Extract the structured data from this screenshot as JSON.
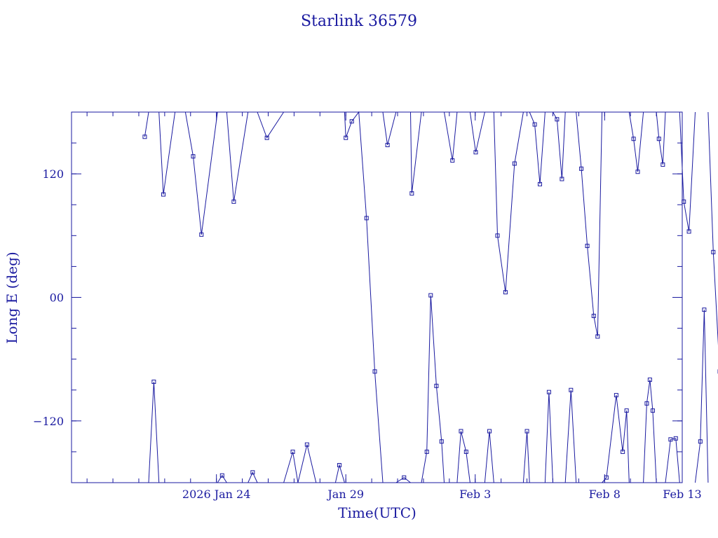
{
  "chart_data": {
    "type": "line",
    "title": "Starlink 36579",
    "xlabel": "Time(UTC)",
    "ylabel": "Long E (deg)",
    "ylim": [
      -180,
      180
    ],
    "xlim": [
      0,
      23.6
    ],
    "x_ticks": [
      {
        "x": 5.6,
        "label": "2026 Jan 24"
      },
      {
        "x": 10.6,
        "label": "Jan 29"
      },
      {
        "x": 15.6,
        "label": "Feb  3"
      },
      {
        "x": 20.6,
        "label": "Feb  8"
      },
      {
        "x": 25.6,
        "label": "Feb 13"
      }
    ],
    "y_ticks": [
      {
        "y": 120,
        "label": "120"
      },
      {
        "y": 0,
        "label": "00"
      },
      {
        "y": -120,
        "label": "−120"
      }
    ],
    "y_minor_step": 30,
    "x_minor_step": 1,
    "color": "#1a1aa0",
    "series": [
      {
        "points": [
          [
            2.83,
            156
          ],
          [
            2.98,
            180
          ],
          [
            2.98,
            -180
          ],
          [
            3.18,
            -82
          ],
          [
            3.38,
            -180
          ],
          [
            3.38,
            180
          ],
          [
            3.55,
            100
          ],
          [
            4.0,
            180
          ],
          [
            4.4,
            180
          ],
          [
            4.7,
            137
          ],
          [
            5.02,
            61
          ],
          [
            5.64,
            180
          ],
          [
            5.64,
            -180
          ],
          [
            5.82,
            -173
          ],
          [
            6.0,
            -180
          ],
          [
            6.0,
            180
          ],
          [
            6.27,
            93
          ],
          [
            6.82,
            180
          ],
          [
            6.82,
            -180
          ],
          [
            7.0,
            -170
          ],
          [
            7.18,
            -180
          ],
          [
            7.18,
            180
          ],
          [
            7.55,
            155
          ],
          [
            8.2,
            180
          ],
          [
            8.2,
            -180
          ],
          [
            8.55,
            -150
          ],
          [
            8.75,
            -180
          ],
          [
            8.75,
            -180
          ],
          [
            9.1,
            -143
          ],
          [
            9.45,
            -180
          ],
          [
            9.45,
            180
          ],
          [
            9.75,
            180
          ],
          [
            10.2,
            180
          ],
          [
            10.2,
            -180
          ],
          [
            10.35,
            -163
          ],
          [
            10.55,
            -180
          ],
          [
            10.55,
            180
          ],
          [
            10.6,
            155
          ],
          [
            10.83,
            171
          ],
          [
            11.1,
            180
          ],
          [
            11.4,
            77
          ],
          [
            11.72,
            -72
          ],
          [
            12.03,
            -180
          ],
          [
            12.03,
            180
          ],
          [
            12.21,
            148
          ],
          [
            12.54,
            180
          ],
          [
            12.54,
            -180
          ],
          [
            12.85,
            -175
          ],
          [
            13.1,
            -180
          ],
          [
            13.1,
            180
          ],
          [
            13.15,
            101
          ],
          [
            13.52,
            180
          ],
          [
            13.52,
            -180
          ],
          [
            13.73,
            -150
          ],
          [
            13.88,
            2
          ],
          [
            14.1,
            -86
          ],
          [
            14.3,
            -140
          ],
          [
            14.4,
            -180
          ],
          [
            14.4,
            180
          ],
          [
            14.72,
            133
          ],
          [
            14.9,
            180
          ],
          [
            14.9,
            -180
          ],
          [
            15.05,
            -130
          ],
          [
            15.25,
            -150
          ],
          [
            15.4,
            -180
          ],
          [
            15.4,
            180
          ],
          [
            15.62,
            141
          ],
          [
            15.97,
            180
          ],
          [
            15.97,
            -180
          ],
          [
            16.15,
            -130
          ],
          [
            16.32,
            -180
          ],
          [
            16.32,
            180
          ],
          [
            16.46,
            60
          ],
          [
            16.77,
            5
          ],
          [
            17.12,
            130
          ],
          [
            17.46,
            180
          ],
          [
            17.46,
            -180
          ],
          [
            17.6,
            -130
          ],
          [
            17.7,
            -180
          ],
          [
            17.7,
            180
          ],
          [
            17.9,
            168
          ],
          [
            18.1,
            110
          ],
          [
            18.3,
            180
          ],
          [
            18.3,
            -180
          ],
          [
            18.45,
            -92
          ],
          [
            18.6,
            -180
          ],
          [
            18.6,
            180
          ],
          [
            18.76,
            173
          ],
          [
            18.95,
            115
          ],
          [
            19.08,
            180
          ],
          [
            19.08,
            -180
          ],
          [
            19.3,
            -90
          ],
          [
            19.5,
            -180
          ],
          [
            19.5,
            180
          ],
          [
            19.7,
            125
          ],
          [
            19.93,
            50
          ],
          [
            20.18,
            -18
          ],
          [
            20.33,
            -38
          ],
          [
            20.5,
            180
          ],
          [
            20.5,
            -180
          ],
          [
            20.67,
            -175
          ],
          [
            21.05,
            -95
          ],
          [
            21.3,
            -150
          ],
          [
            21.45,
            -110
          ],
          [
            21.55,
            -180
          ],
          [
            21.55,
            180
          ],
          [
            21.72,
            154
          ],
          [
            21.88,
            122
          ],
          [
            22.1,
            180
          ],
          [
            22.1,
            -180
          ],
          [
            22.23,
            -103
          ],
          [
            22.35,
            -80
          ],
          [
            22.46,
            -110
          ],
          [
            22.6,
            -180
          ],
          [
            22.6,
            180
          ],
          [
            22.7,
            154
          ],
          [
            22.85,
            129
          ],
          [
            22.95,
            180
          ],
          [
            22.95,
            -180
          ],
          [
            23.15,
            -138
          ],
          [
            23.35,
            -137
          ],
          [
            23.5,
            -180
          ],
          [
            23.5,
            180
          ],
          [
            23.66,
            93
          ],
          [
            23.86,
            64
          ],
          [
            24.1,
            180
          ],
          [
            24.1,
            -180
          ],
          [
            24.3,
            -140
          ],
          [
            24.45,
            -12
          ],
          [
            24.6,
            -180
          ],
          [
            24.6,
            180
          ],
          [
            24.8,
            44
          ],
          [
            25.05,
            -72
          ],
          [
            25.3,
            180
          ],
          [
            25.3,
            -180
          ],
          [
            25.45,
            -145
          ],
          [
            25.55,
            180
          ]
        ]
      }
    ]
  }
}
